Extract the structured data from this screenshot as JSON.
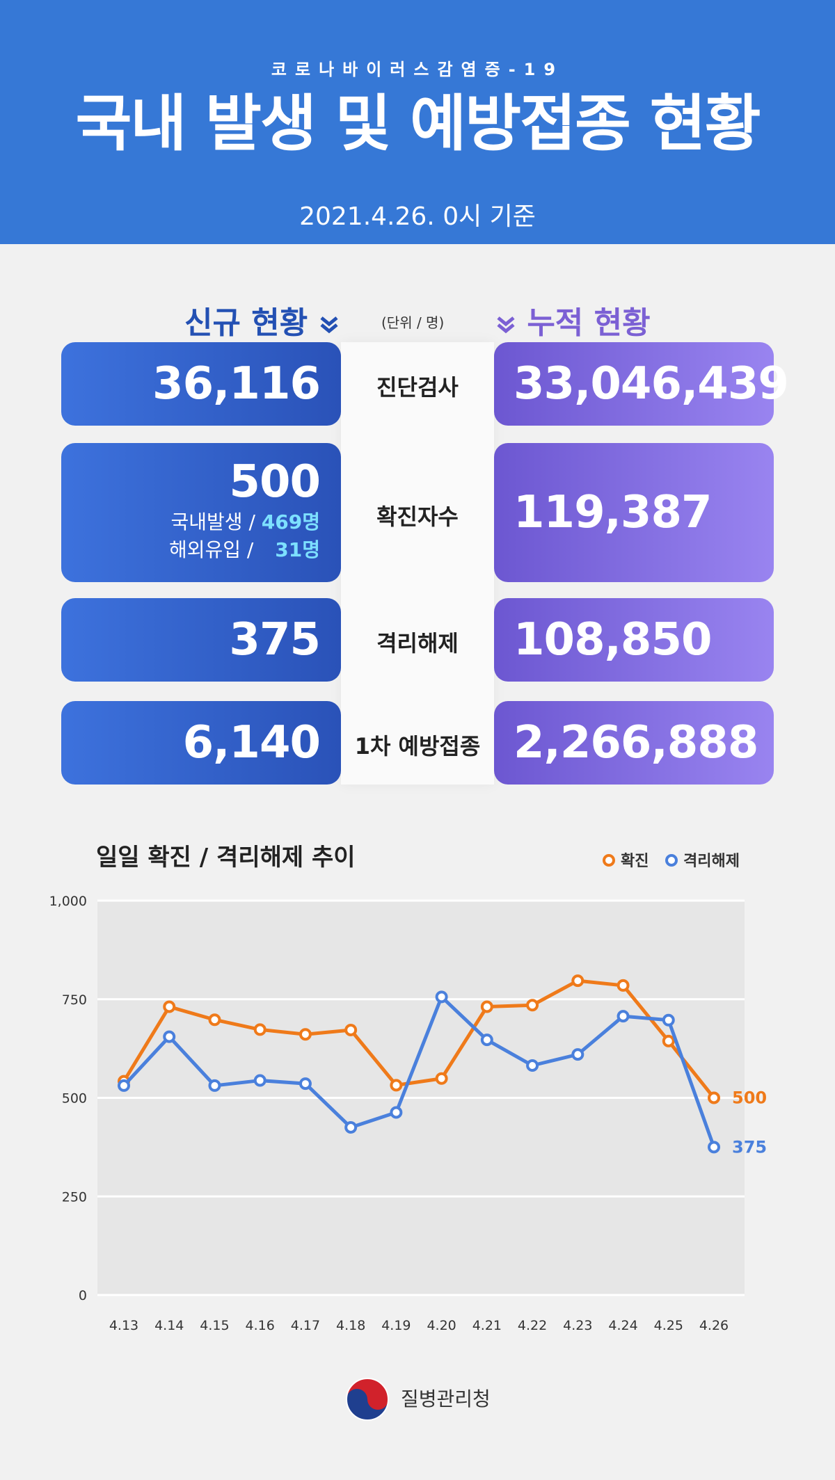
{
  "header": {
    "subtitle": "코로나바이러스감염증-19",
    "title": "국내 발생 및 예방접종 현황",
    "date": "2021.4.26. 0시 기준"
  },
  "sections": {
    "new_label": "신규 현황",
    "cumulative_label": "누적 현황",
    "unit": "(단위 / 명)",
    "new_icon": "double-chevron-down-icon",
    "cumulative_icon": "double-chevron-down-icon"
  },
  "rows": [
    {
      "label": "진단검사",
      "new": "36,116",
      "cumulative": "33,046,439"
    },
    {
      "label": "확진자수",
      "new": "500",
      "cumulative": "119,387",
      "breakdown": [
        {
          "name": "국내발생 /",
          "value": "469명"
        },
        {
          "name": "해외유입 /",
          "value": "31명"
        }
      ]
    },
    {
      "label": "격리해제",
      "new": "375",
      "cumulative": "108,850"
    },
    {
      "label": "1차 예방접종",
      "new": "6,140",
      "cumulative": "2,266,888"
    }
  ],
  "colors": {
    "header_bg": "#3678d6",
    "new_card": "#2f5ec6",
    "cumulative_card": "#8470e0",
    "confirmed_line": "#ef7a1a",
    "released_line": "#4a80dc"
  },
  "chart_data": {
    "type": "line",
    "title": "일일 확진 / 격리해제 추이",
    "categories": [
      "4.13",
      "4.14",
      "4.15",
      "4.16",
      "4.17",
      "4.18",
      "4.19",
      "4.20",
      "4.21",
      "4.22",
      "4.23",
      "4.24",
      "4.25",
      "4.26"
    ],
    "series": [
      {
        "name": "확진",
        "color": "#ef7a1a",
        "values": [
          542,
          731,
          698,
          673,
          661,
          672,
          532,
          549,
          731,
          735,
          797,
          785,
          644,
          500
        ]
      },
      {
        "name": "격리해제",
        "color": "#4a80dc",
        "values": [
          531,
          655,
          531,
          544,
          536,
          425,
          463,
          756,
          647,
          582,
          610,
          707,
          697,
          375
        ]
      }
    ],
    "end_labels": [
      "500",
      "375"
    ],
    "yticks": [
      "0",
      "250",
      "500",
      "750",
      "1,000"
    ],
    "ylim": [
      0,
      1000
    ],
    "legend": "top-right",
    "grid": true
  },
  "footer": {
    "agency": "질병관리청",
    "logo_icon": "taegeuk-emblem-icon"
  }
}
